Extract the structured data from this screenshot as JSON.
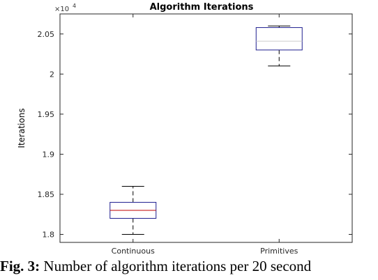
{
  "chart_data": {
    "type": "box",
    "title": "Algorithm Iterations",
    "ylabel": "Iterations",
    "xlabel": "",
    "y_multiplier": "×10",
    "y_multiplier_exponent": "4",
    "categories": [
      "Continuous",
      "Primitives"
    ],
    "ylim": [
      1.79,
      2.075
    ],
    "yticks": [
      1.8,
      1.85,
      1.9,
      1.95,
      2.0,
      2.05
    ],
    "ytick_labels": [
      "1.8",
      "1.85",
      "1.9",
      "1.95",
      "2",
      "2.05"
    ],
    "boxes": [
      {
        "category": "Continuous",
        "whisker_low": 1.8,
        "q1": 1.82,
        "median": 1.83,
        "q3": 1.84,
        "whisker_high": 1.86,
        "median_color": "#c00000",
        "box_color": "#1f1f8f"
      },
      {
        "category": "Primitives",
        "whisker_low": 2.01,
        "q1": 2.03,
        "median": 2.041,
        "q3": 2.058,
        "whisker_high": 2.06,
        "median_color": "#cccccc",
        "box_color": "#1f1f8f"
      }
    ],
    "grid": false,
    "legend": "none"
  },
  "caption": {
    "label": "Fig. 3:",
    "text": "Number of algorithm iterations per 20 second"
  }
}
